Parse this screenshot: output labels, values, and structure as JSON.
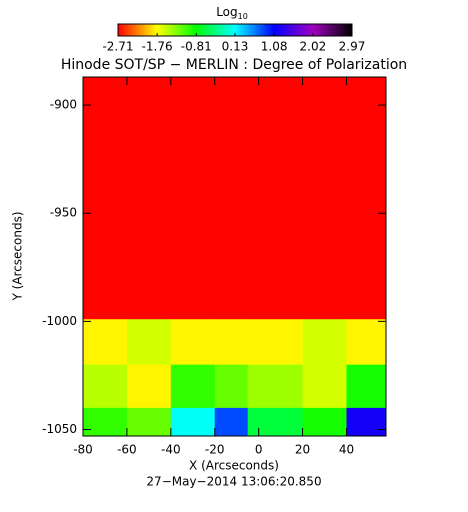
{
  "chart_data": {
    "type": "heatmap",
    "title": "Hinode SOT/SP − MERLIN : Degree of Polarization",
    "colorbar_label": "Log",
    "colorbar_label_sub": "10",
    "colorbar_lim": [
      -2.71,
      2.97
    ],
    "colorbar_ticks": [
      -2.71,
      -1.76,
      -0.81,
      0.13,
      1.08,
      2.02,
      2.97
    ],
    "colormap": [
      "#ff0000",
      "#ffff00",
      "#00ff00",
      "#00ffff",
      "#0000ff",
      "#a000c0",
      "#000000"
    ],
    "x_label": "X (Arcseconds)",
    "y_label": "Y (Arcseconds)",
    "footer": "27−May−2014 13:06:20.850",
    "xlim": [
      -80,
      58
    ],
    "xticks": [
      -80,
      -60,
      -40,
      -20,
      0,
      20,
      40
    ],
    "ylim": [
      -1053,
      -887
    ],
    "yticks": [
      -900,
      -950,
      -1000,
      -1050
    ],
    "xbins": [
      -80,
      -60,
      -40,
      -20,
      -5,
      20,
      40,
      58
    ],
    "ybins": [
      -887,
      -999,
      -1020,
      -1040,
      -1053
    ],
    "z": [
      [
        -2.7,
        -2.7,
        -2.7,
        -2.7,
        -2.7,
        -2.7,
        -2.7
      ],
      [
        -1.8,
        -1.6,
        -1.8,
        -1.8,
        -1.8,
        -1.6,
        -1.8
      ],
      [
        -1.5,
        -1.8,
        -1.0,
        -1.2,
        -1.4,
        -1.6,
        -0.9
      ],
      [
        -1.0,
        -1.2,
        0.1,
        0.8,
        -0.6,
        -0.9,
        1.2
      ]
    ]
  }
}
